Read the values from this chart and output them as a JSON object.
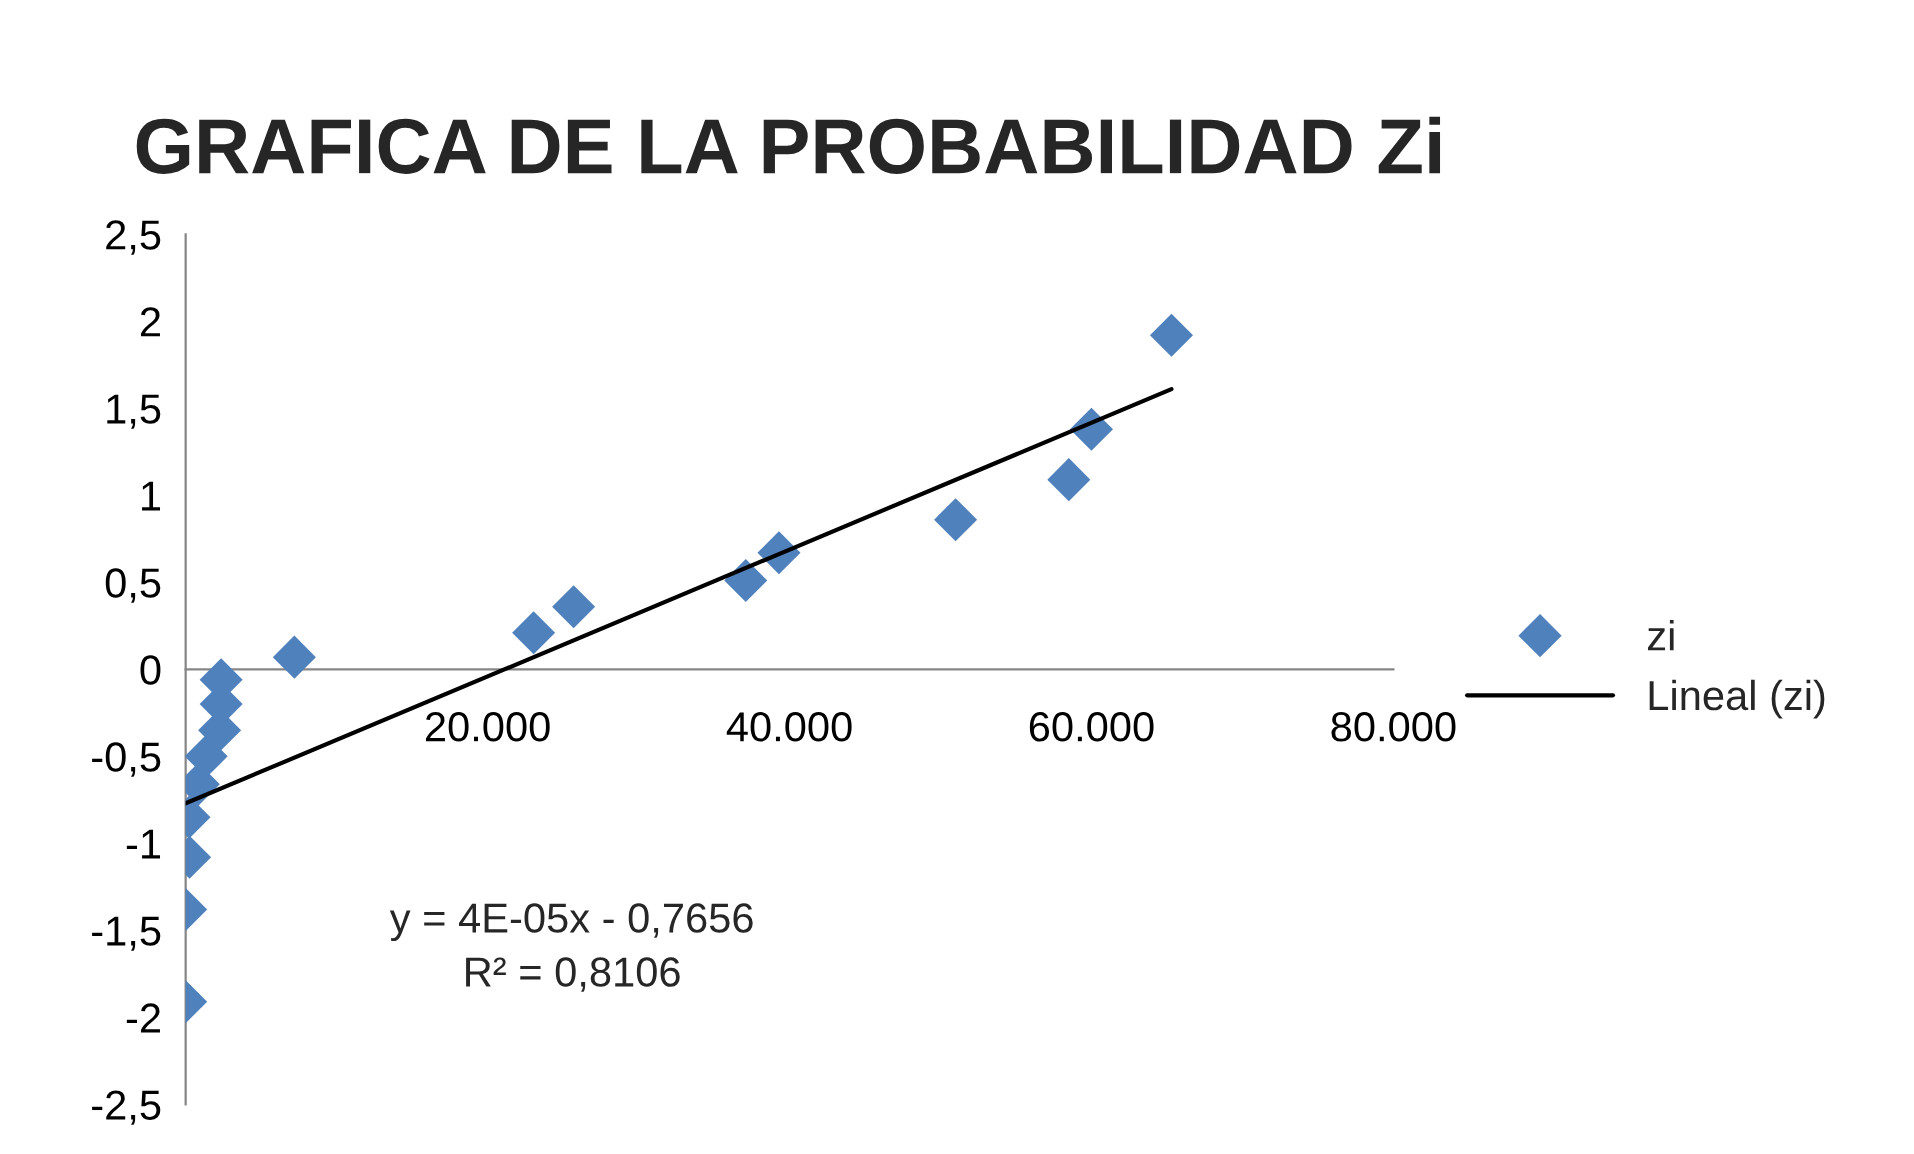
{
  "chart_data": {
    "type": "scatter",
    "title": "GRAFICA DE LA PROBABILIDAD Zi",
    "series": [
      {
        "name": "zi",
        "color": "#4f81bd",
        "marker": "diamond",
        "x": [
          0,
          0,
          260,
          220,
          840,
          1360,
          2250,
          2350,
          2350,
          7200,
          23050,
          25700,
          37100,
          39300,
          51000,
          58500,
          60000,
          65300
        ],
        "values": [
          -1.91,
          -1.38,
          -1.08,
          -0.85,
          -0.66,
          -0.5,
          -0.35,
          -0.2,
          -0.06,
          0.07,
          0.21,
          0.36,
          0.51,
          0.67,
          0.86,
          1.09,
          1.38,
          1.92
        ]
      },
      {
        "name": "Lineal (zi)",
        "type": "line",
        "color": "#000000",
        "marker": "none",
        "line_style": "solid",
        "x": [
          0,
          65300
        ],
        "values": [
          -0.77,
          1.61
        ]
      }
    ],
    "xlim": [
      0,
      80000
    ],
    "ylim": [
      -2.5,
      2.5
    ],
    "xticks": [
      {
        "value": 20000,
        "label": "20.000"
      },
      {
        "value": 40000,
        "label": "40.000"
      },
      {
        "value": 60000,
        "label": "60.000"
      },
      {
        "value": 80000,
        "label": "80.000"
      }
    ],
    "yticks": [
      {
        "value": -2.5,
        "label": "-2,5"
      },
      {
        "value": -2,
        "label": "-2"
      },
      {
        "value": -1.5,
        "label": "-1,5"
      },
      {
        "value": -1,
        "label": "-1"
      },
      {
        "value": -0.5,
        "label": "-0,5"
      },
      0,
      {
        "value": 0.5,
        "label": "0,5"
      },
      1,
      {
        "value": 1.5,
        "label": "1,5"
      },
      2,
      {
        "value": 2.5,
        "label": "2,5"
      }
    ],
    "annotations": [
      "y = 4E-05x - 0,7656",
      "R² = 0,8106"
    ],
    "grid": false,
    "legend": "right"
  }
}
